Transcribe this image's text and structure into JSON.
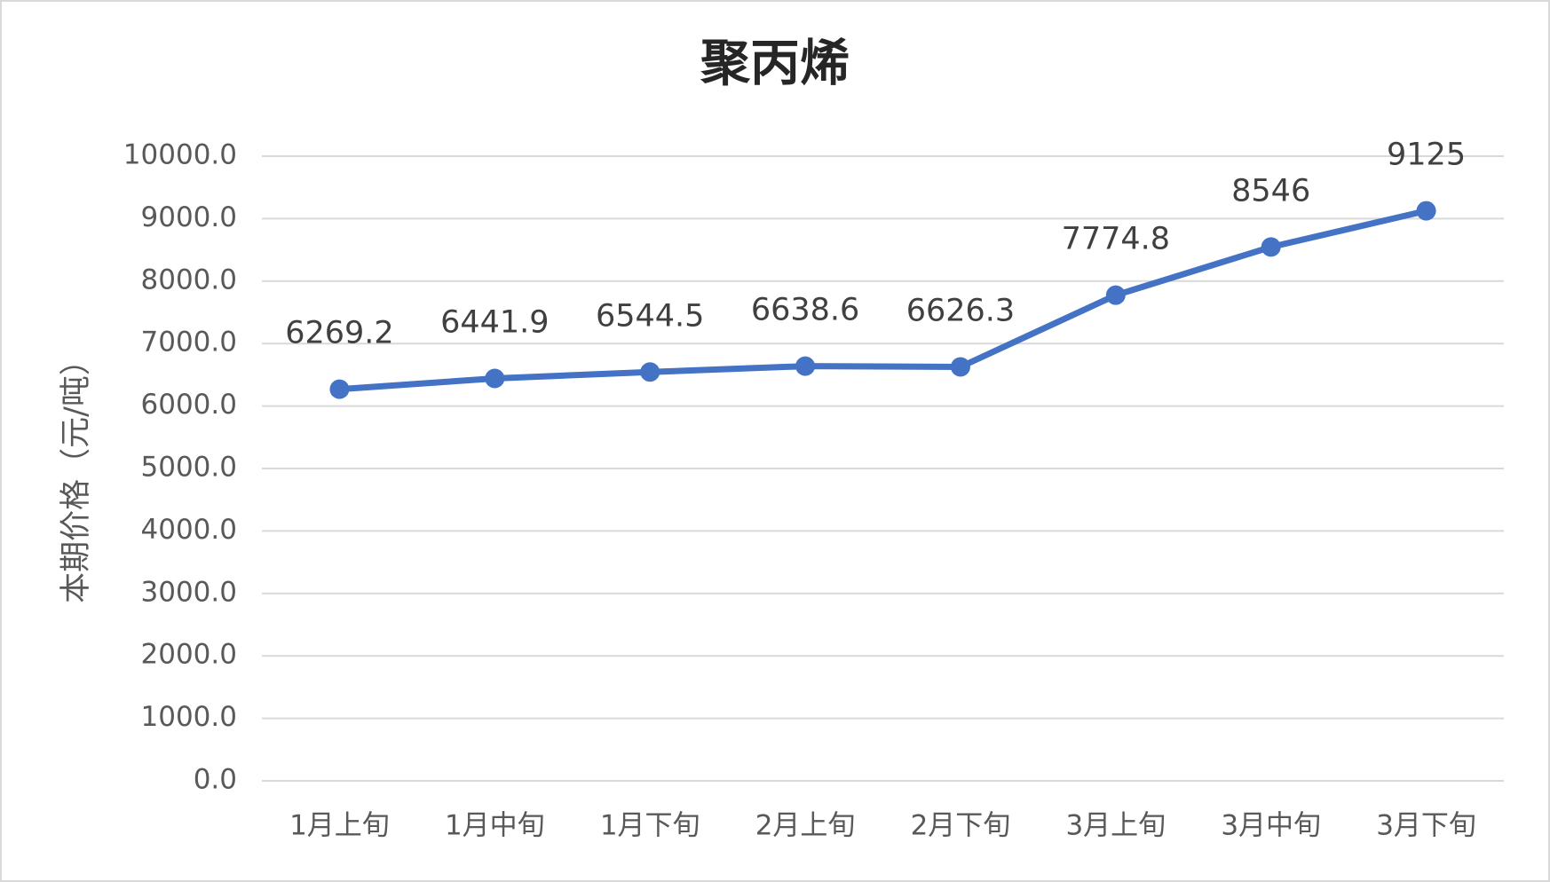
{
  "chart_data": {
    "type": "line",
    "title": "聚丙烯",
    "y_label": "本期价格（元/吨）",
    "categories": [
      "1月上旬",
      "1月中旬",
      "1月下旬",
      "2月上旬",
      "2月下旬",
      "3月上旬",
      "3月中旬",
      "3月下旬"
    ],
    "series": [
      {
        "name": "本期价格",
        "color": "#4472c4",
        "values": [
          6269.2,
          6441.9,
          6544.5,
          6638.6,
          6626.3,
          7774.8,
          8546,
          9125
        ]
      }
    ],
    "ylim": [
      0,
      10000
    ],
    "yticks": [
      {
        "value": 0,
        "label": "0.0"
      },
      {
        "value": 1000,
        "label": "1000.0"
      },
      {
        "value": 2000,
        "label": "2000.0"
      },
      {
        "value": 3000,
        "label": "3000.0"
      },
      {
        "value": 4000,
        "label": "4000.0"
      },
      {
        "value": 5000,
        "label": "5000.0"
      },
      {
        "value": 6000,
        "label": "6000.0"
      },
      {
        "value": 7000,
        "label": "7000.0"
      },
      {
        "value": 8000,
        "label": "8000.0"
      },
      {
        "value": 9000,
        "label": "9000.0"
      },
      {
        "value": 10000,
        "label": "10000.0"
      }
    ],
    "grid": true
  }
}
